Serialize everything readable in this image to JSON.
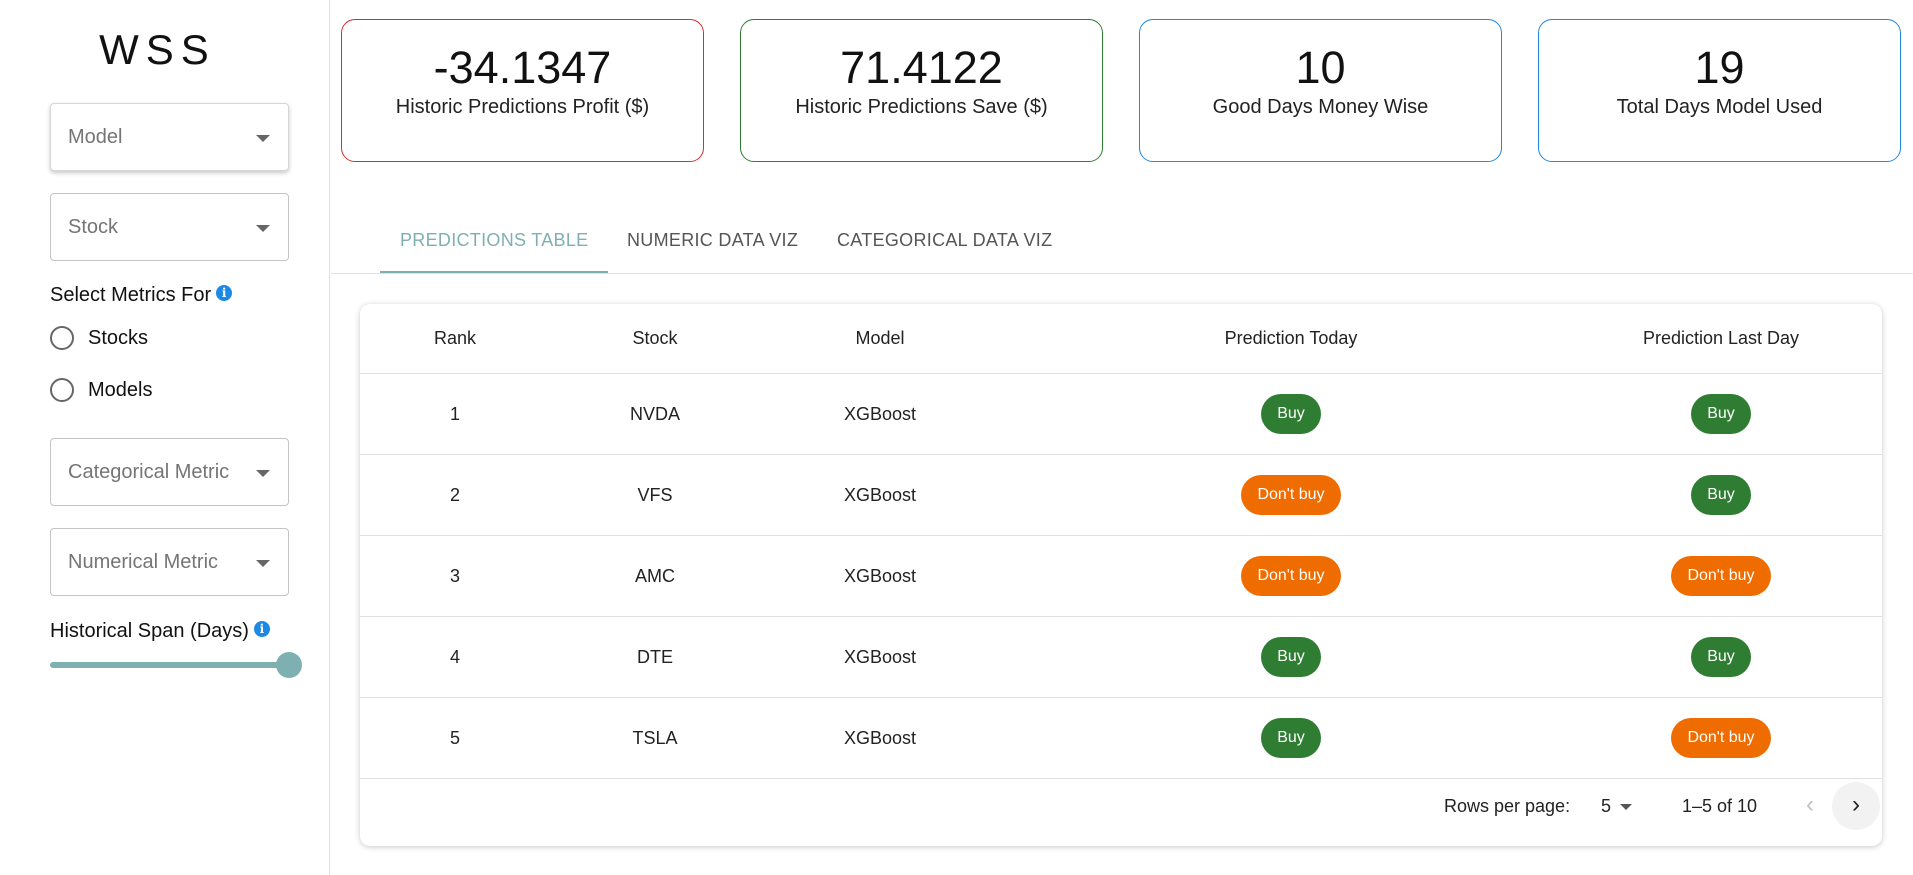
{
  "app": {
    "logo": "WSS"
  },
  "sidebar": {
    "model_select": {
      "placeholder": "Model"
    },
    "stock_select": {
      "placeholder": "Stock"
    },
    "metrics_label": "Select Metrics For",
    "radios": [
      {
        "label": "Stocks",
        "checked": false
      },
      {
        "label": "Models",
        "checked": false
      }
    ],
    "categorical_select": {
      "placeholder": "Categorical Metric"
    },
    "numerical_select": {
      "placeholder": "Numerical Metric"
    },
    "span_label": "Historical Span (Days)",
    "span_slider_fraction": 1.0,
    "info_icon": "i"
  },
  "stats": [
    {
      "value": "-34.1347",
      "label": "Historic Predictions Profit ($)",
      "color": "#d32f2f"
    },
    {
      "value": "71.4122",
      "label": "Historic Predictions Save ($)",
      "color": "#2e7d32"
    },
    {
      "value": "10",
      "label": "Good Days Money Wise",
      "color": "#1e88e5"
    },
    {
      "value": "19",
      "label": "Total Days Model Used",
      "color": "#1e88e5"
    }
  ],
  "tabs": [
    {
      "label": "PREDICTIONS TABLE",
      "active": true
    },
    {
      "label": "NUMERIC DATA VIZ",
      "active": false
    },
    {
      "label": "CATEGORICAL DATA VIZ",
      "active": false
    }
  ],
  "table": {
    "headers": {
      "rank": "Rank",
      "stock": "Stock",
      "model": "Model",
      "today": "Prediction Today",
      "last": "Prediction Last Day"
    },
    "rows": [
      {
        "rank": "1",
        "stock": "NVDA",
        "model": "XGBoost",
        "today": "Buy",
        "last": "Buy"
      },
      {
        "rank": "2",
        "stock": "VFS",
        "model": "XGBoost",
        "today": "Don't buy",
        "last": "Buy"
      },
      {
        "rank": "3",
        "stock": "AMC",
        "model": "XGBoost",
        "today": "Don't buy",
        "last": "Don't buy"
      },
      {
        "rank": "4",
        "stock": "DTE",
        "model": "XGBoost",
        "today": "Buy",
        "last": "Buy"
      },
      {
        "rank": "5",
        "stock": "TSLA",
        "model": "XGBoost",
        "today": "Buy",
        "last": "Don't buy"
      }
    ],
    "footer": {
      "rows_per_page_label": "Rows per page:",
      "rows_per_page_value": "5",
      "range": "1–5 of 10",
      "prev_icon": "‹",
      "next_icon": "›"
    }
  },
  "colors": {
    "accent": "#7fb0b1",
    "buy": "#2e7d32",
    "dont_buy": "#ef6c00"
  }
}
